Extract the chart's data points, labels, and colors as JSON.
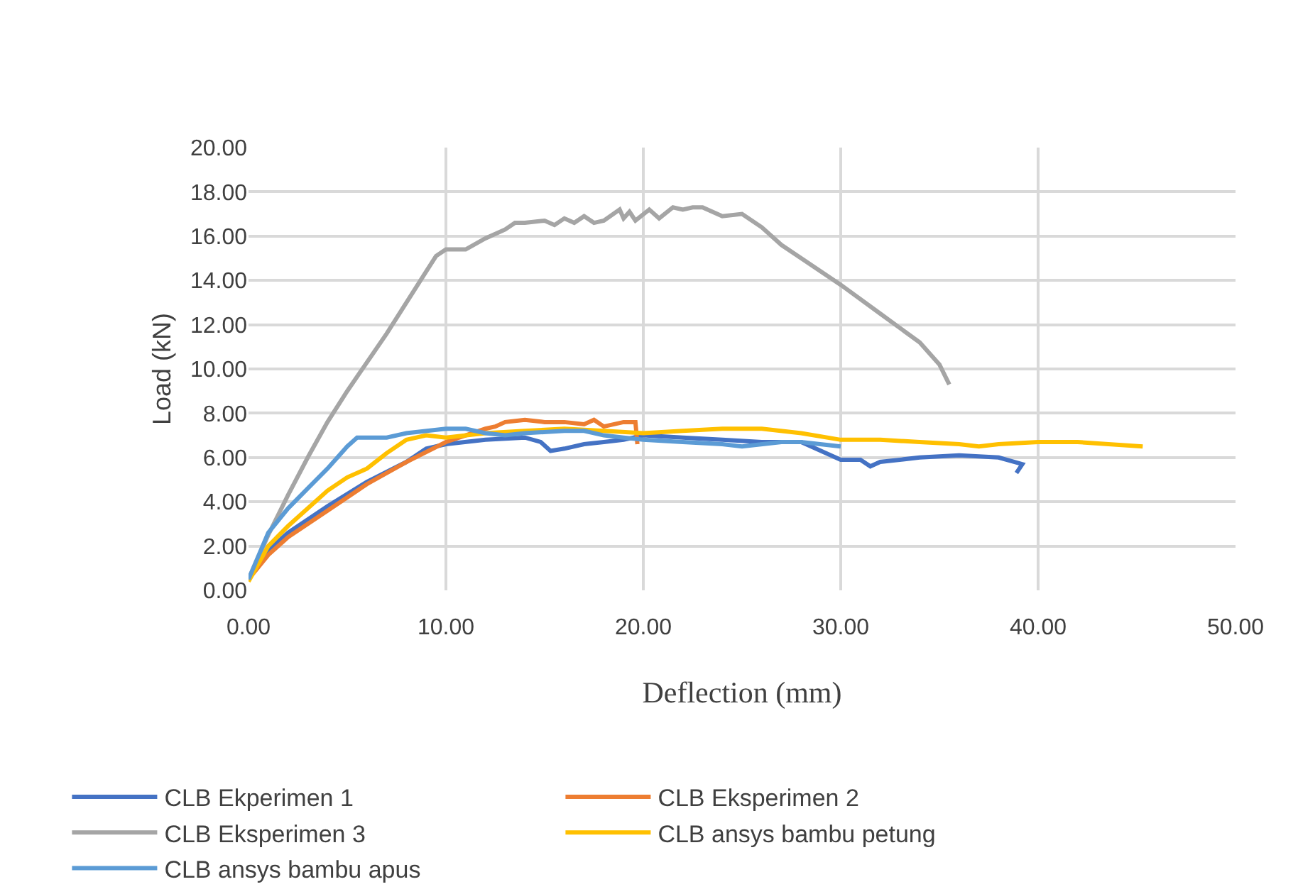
{
  "chart_data": {
    "type": "line",
    "xlabel": "Deflection (mm)",
    "ylabel": "Load (kN)",
    "xlim": [
      0,
      50
    ],
    "xticks": [
      {
        "value": 0,
        "label": "0.00"
      },
      {
        "value": 10,
        "label": "10.00"
      },
      {
        "value": 20,
        "label": "20.00"
      },
      {
        "value": 30,
        "label": "30.00"
      },
      {
        "value": 40,
        "label": "40.00"
      },
      {
        "value": 50,
        "label": "50.00"
      }
    ],
    "ylim": [
      0,
      20
    ],
    "yticks": [
      {
        "value": 0,
        "label": "0.00"
      },
      {
        "value": 2,
        "label": "2.00"
      },
      {
        "value": 4,
        "label": "4.00"
      },
      {
        "value": 6,
        "label": "6.00"
      },
      {
        "value": 8,
        "label": "8.00"
      },
      {
        "value": 10,
        "label": "10.00"
      },
      {
        "value": 12,
        "label": "12.00"
      },
      {
        "value": 14,
        "label": "14.00"
      },
      {
        "value": 16,
        "label": "16.00"
      },
      {
        "value": 18,
        "label": "18.00"
      },
      {
        "value": 20,
        "label": "20.00"
      }
    ],
    "grid": true,
    "legend": "bottom",
    "marker": "none",
    "line_style": "solid",
    "series": [
      {
        "name": "CLB Ekperimen 1",
        "color": "#4472c4",
        "x": [
          0,
          1,
          2,
          4,
          6,
          8,
          9,
          10,
          12,
          14,
          14.8,
          15.3,
          16,
          17,
          18,
          19,
          20,
          22,
          24,
          26,
          28,
          29,
          30,
          31,
          31.5,
          32,
          34,
          36,
          38,
          39.2,
          38.9
        ],
        "values": [
          0.5,
          1.8,
          2.6,
          3.8,
          4.9,
          5.8,
          6.4,
          6.6,
          6.8,
          6.9,
          6.7,
          6.3,
          6.4,
          6.6,
          6.7,
          6.8,
          7.0,
          6.9,
          6.8,
          6.7,
          6.7,
          6.3,
          5.9,
          5.9,
          5.6,
          5.8,
          6.0,
          6.1,
          6.0,
          5.7,
          5.3
        ]
      },
      {
        "name": "CLB Eksperimen 2",
        "color": "#ed7d31",
        "x": [
          0,
          1,
          2,
          4,
          6,
          8,
          10,
          11,
          12,
          12.5,
          13,
          14,
          15,
          16,
          17,
          17.5,
          18,
          19,
          19.6,
          19.7
        ],
        "values": [
          0.5,
          1.6,
          2.4,
          3.6,
          4.8,
          5.8,
          6.7,
          7.0,
          7.3,
          7.4,
          7.6,
          7.7,
          7.6,
          7.6,
          7.5,
          7.7,
          7.4,
          7.6,
          7.6,
          6.6
        ]
      },
      {
        "name": "CLB Eksperimen 3",
        "color": "#a5a5a5",
        "x": [
          0,
          1,
          2,
          3,
          4,
          5,
          6,
          7,
          8,
          9,
          9.5,
          10,
          11,
          12,
          13,
          13.5,
          14,
          15,
          15.5,
          16,
          16.5,
          17,
          17.5,
          18,
          18.8,
          19,
          19.3,
          19.6,
          20.3,
          20.8,
          21.5,
          22,
          22.5,
          23,
          24,
          25,
          26,
          27,
          28,
          30,
          32,
          34,
          35,
          35.5
        ],
        "values": [
          0.5,
          2.5,
          4.3,
          6.0,
          7.6,
          9.0,
          10.3,
          11.6,
          13.0,
          14.4,
          15.1,
          15.4,
          15.4,
          15.9,
          16.3,
          16.6,
          16.6,
          16.7,
          16.5,
          16.8,
          16.6,
          16.9,
          16.6,
          16.7,
          17.2,
          16.8,
          17.1,
          16.7,
          17.2,
          16.8,
          17.3,
          17.2,
          17.3,
          17.3,
          16.9,
          17.0,
          16.4,
          15.6,
          15.0,
          13.8,
          12.5,
          11.2,
          10.2,
          9.3
        ]
      },
      {
        "name": "CLB ansys bambu petung",
        "color": "#ffc000",
        "x": [
          0,
          1,
          2,
          3,
          4,
          5,
          6,
          7,
          8,
          9,
          10,
          12,
          14,
          16,
          18,
          20,
          22,
          24,
          26,
          28,
          30,
          32,
          34,
          36,
          37,
          38,
          40,
          42,
          45.3
        ],
        "values": [
          0.4,
          2.0,
          2.9,
          3.7,
          4.5,
          5.1,
          5.5,
          6.2,
          6.8,
          7.0,
          6.9,
          7.1,
          7.2,
          7.3,
          7.2,
          7.1,
          7.2,
          7.3,
          7.3,
          7.1,
          6.8,
          6.8,
          6.7,
          6.6,
          6.5,
          6.6,
          6.7,
          6.7,
          6.5
        ]
      },
      {
        "name": "CLB ansys bambu apus",
        "color": "#5b9bd5",
        "x": [
          0,
          1,
          2,
          3,
          4,
          5,
          5.5,
          6,
          7,
          8,
          10,
          11,
          12,
          13,
          14,
          16,
          17,
          18,
          19,
          20,
          22,
          24,
          25,
          27,
          28,
          30
        ],
        "values": [
          0.5,
          2.6,
          3.7,
          4.6,
          5.5,
          6.5,
          6.9,
          6.9,
          6.9,
          7.1,
          7.3,
          7.3,
          7.1,
          7.0,
          7.1,
          7.2,
          7.2,
          7.0,
          6.9,
          6.8,
          6.7,
          6.6,
          6.5,
          6.7,
          6.7,
          6.5
        ]
      }
    ]
  }
}
